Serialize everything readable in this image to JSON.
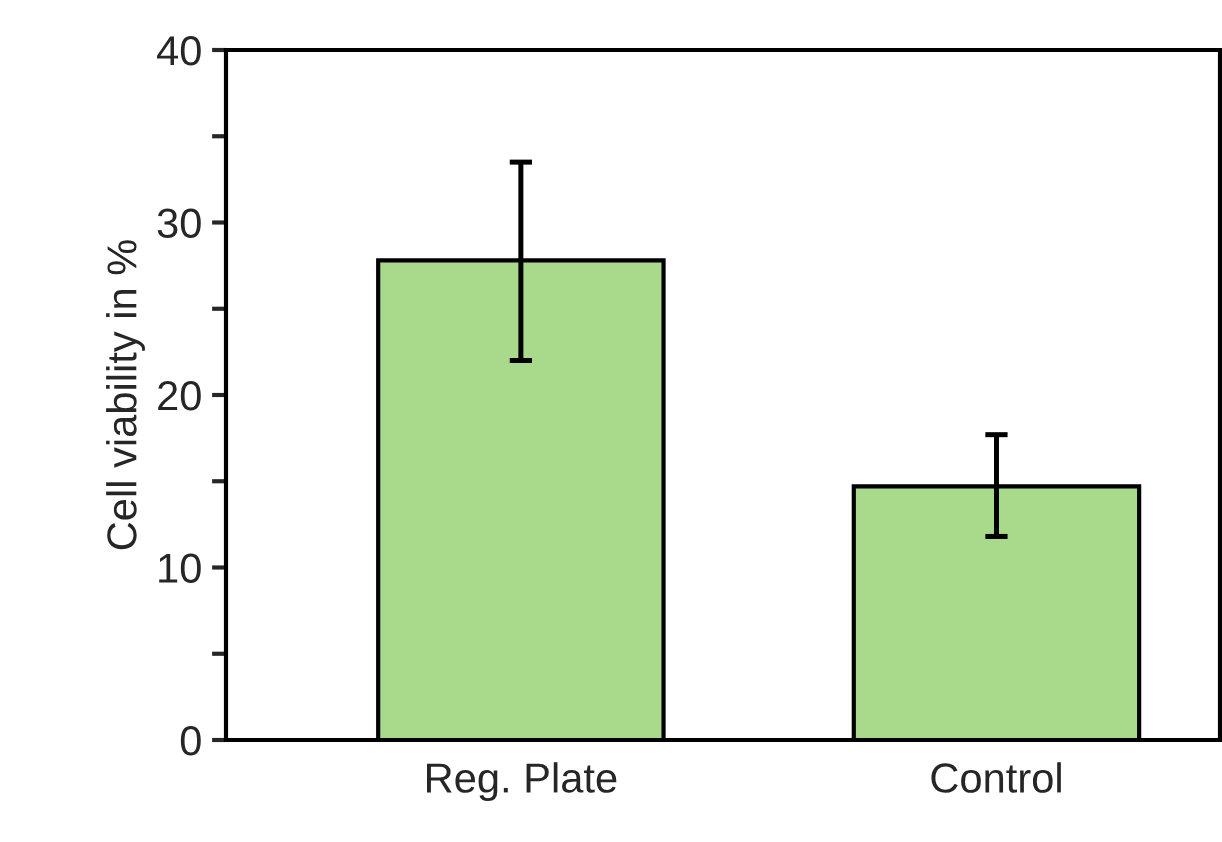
{
  "chart_data": {
    "type": "bar",
    "ylabel": "Cell viability in %",
    "categories": [
      "Reg. Plate",
      "Control"
    ],
    "values": [
      27.8,
      14.7
    ],
    "errors": [
      [
        22.0,
        33.5
      ],
      [
        11.8,
        17.7
      ]
    ],
    "color": "#a9d98a",
    "ylim": [
      0,
      40
    ],
    "yticks": [
      0,
      {
        "value": 5,
        "label": null
      },
      10,
      {
        "value": 15,
        "label": null
      },
      20,
      {
        "value": 25,
        "label": null
      },
      30,
      {
        "value": 35,
        "label": null
      },
      40
    ],
    "grid": false,
    "legend": false
  }
}
